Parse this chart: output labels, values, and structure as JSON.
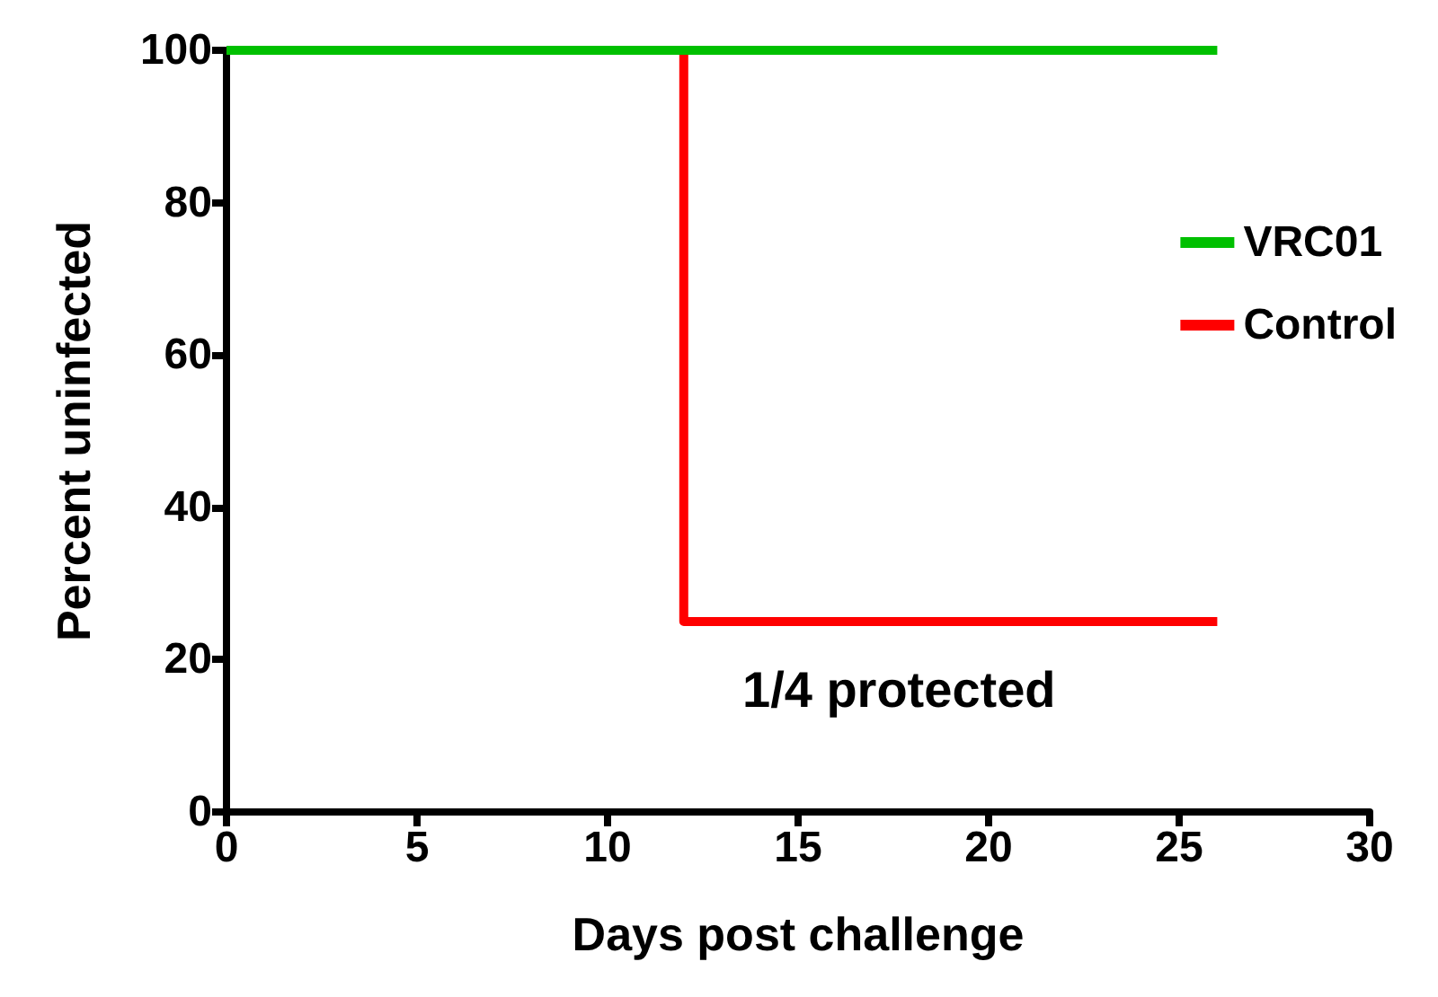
{
  "chart_data": {
    "type": "step",
    "xlabel": "Days post challenge",
    "ylabel": "Percent uninfected",
    "xlim": [
      0,
      30
    ],
    "xticks": [
      0,
      5,
      10,
      15,
      20,
      25,
      30
    ],
    "ylim": [
      0,
      100
    ],
    "yticks": [
      0,
      20,
      40,
      60,
      80,
      100
    ],
    "series": [
      {
        "name": "VRC01",
        "color": "#00c000",
        "x": [
          0,
          26
        ],
        "values": [
          100,
          100
        ]
      },
      {
        "name": "Control",
        "color": "#ff0000",
        "x": [
          0,
          12,
          26
        ],
        "values": [
          100,
          25,
          25
        ]
      }
    ],
    "annotations": [
      "1/4 protected"
    ],
    "legend": "top right",
    "grid": false
  }
}
